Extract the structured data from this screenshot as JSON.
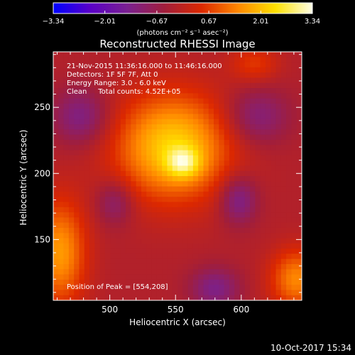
{
  "chart_data": {
    "type": "heatmap",
    "title": "Reconstructed RHESSI Image",
    "xlabel": "Heliocentric X (arcsec)",
    "ylabel": "Heliocentric Y (arcsec)",
    "xlim": [
      457,
      646
    ],
    "ylim": [
      104,
      292
    ],
    "x_ticks": [
      500,
      550,
      600
    ],
    "y_ticks": [
      150,
      200,
      250
    ],
    "x_tick_labels": [
      "500",
      "550",
      "600"
    ],
    "y_tick_labels": [
      "150",
      "200",
      "250"
    ],
    "colorbar": {
      "min": -3.34,
      "max": 3.34,
      "ticks": [
        -3.34,
        -2.01,
        -0.67,
        0.67,
        2.01,
        3.34
      ],
      "tick_labels": [
        "−3.34",
        "−2.01",
        "−0.67",
        "0.67",
        "2.01",
        "3.34"
      ],
      "unit_label": "(photons cm⁻² s⁻¹ asec⁻²)"
    },
    "annotations": [
      "21-Nov-2015 11:36:16.000 to 11:46:16.000",
      "Detectors: 1F 5F 7F, Att 0",
      "Energy Range: 3.0 - 6.0 keV",
      "Clean     Total counts: 4.52E+05"
    ],
    "peak_label": "Position of Peak = [554,208]",
    "peak": {
      "x": 554,
      "y": 208,
      "value": 3.34
    },
    "grid": false,
    "image_components": [
      {
        "x": 548,
        "y": 220,
        "sigma_x": 30,
        "sigma_y": 28,
        "amplitude": 2.4
      },
      {
        "x": 556,
        "y": 208,
        "sigma_x": 9,
        "sigma_y": 8,
        "amplitude": 1.4
      },
      {
        "x": 462,
        "y": 140,
        "sigma_x": 14,
        "sigma_y": 28,
        "amplitude": 1.8
      },
      {
        "x": 642,
        "y": 120,
        "sigma_x": 14,
        "sigma_y": 16,
        "amplitude": 1.6
      },
      {
        "x": 478,
        "y": 243,
        "sigma_x": 15,
        "sigma_y": 15,
        "amplitude": -1.1
      },
      {
        "x": 612,
        "y": 243,
        "sigma_x": 17,
        "sigma_y": 15,
        "amplitude": -1.0
      },
      {
        "x": 598,
        "y": 180,
        "sigma_x": 10,
        "sigma_y": 13,
        "amplitude": -1.2
      },
      {
        "x": 504,
        "y": 178,
        "sigma_x": 10,
        "sigma_y": 12,
        "amplitude": -0.9
      },
      {
        "x": 580,
        "y": 113,
        "sigma_x": 13,
        "sigma_y": 11,
        "amplitude": -1.1
      },
      {
        "x": 610,
        "y": 283,
        "sigma_x": 13,
        "sigma_y": 10,
        "amplitude": 0.8
      }
    ],
    "image_background": -0.2,
    "colormap": [
      "#0000ff",
      "#5a00c8",
      "#7a2090",
      "#a01e3c",
      "#dc2800",
      "#ff8800",
      "#ffe000",
      "#ffffe8"
    ]
  },
  "footer": {
    "timestamp": "10-Oct-2017 15:34"
  }
}
